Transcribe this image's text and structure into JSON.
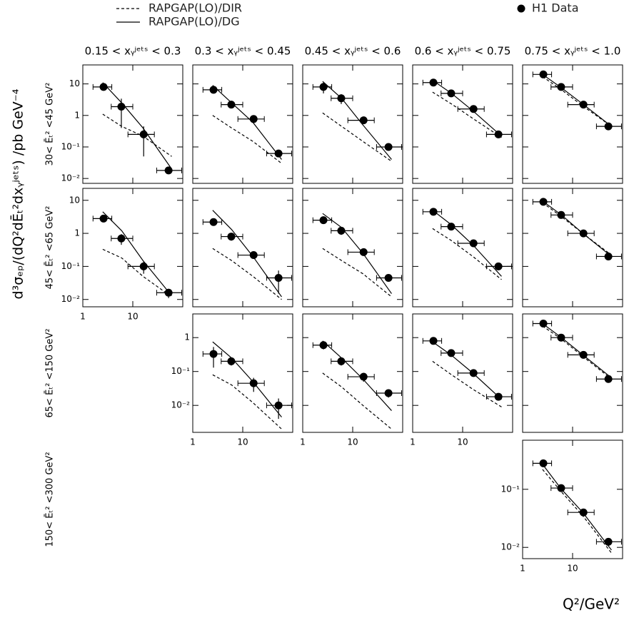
{
  "chart_data": {
    "type": "scatter",
    "ylabel": "d³σₑₚ/(dQ²dĒₜ²dxᵧʲᵉᵗˢ)   /pb GeV⁻⁴",
    "xlabel": "Q²/GeV²",
    "log_x": true,
    "log_y": true,
    "series": [
      {
        "name": "RAPGAP(LO)/DIR",
        "color": "#000000",
        "dash": true
      },
      {
        "name": "RAPGAP(LO)/DG",
        "color": "#000000",
        "dash": false
      },
      {
        "name": "H1 Data",
        "color": "#000000"
      }
    ],
    "column_titles": [
      "0.15 < xᵧʲᵉᵗˢ < 0.3",
      "0.3 < xᵧʲᵉᵗˢ < 0.45",
      "0.45 < xᵧʲᵉᵗˢ < 0.6",
      "0.6 < xᵧʲᵉᵗˢ < 0.75",
      "0.75 < xᵧʲᵉᵗˢ < 1.0"
    ],
    "xlim": [
      1,
      100
    ],
    "xticks": [
      1,
      10
    ],
    "x": [
      2.6,
      5.9,
      16.5,
      52
    ],
    "x_err_low": [
      1.6,
      3.7,
      8,
      30
    ],
    "x_err_high": [
      3.8,
      10,
      27,
      95
    ],
    "curve_x": [
      2.5,
      6,
      16,
      60
    ],
    "rows": [
      {
        "label": "30< Ēₜ² <45 GeV²",
        "ylim": [
          0.007,
          40
        ],
        "yticks": [
          {
            "value": 0.01,
            "label": "10⁻²"
          },
          {
            "value": 0.1,
            "label": "10⁻¹"
          },
          1,
          10
        ],
        "panels": [
          {
            "values": [
              8,
              1.9,
              0.25,
              0.018
            ],
            "yerr": [
              1.5,
              1.5,
              0.2,
              0.003
            ],
            "dg": [
              11,
              2.5,
              0.4,
              0.02
            ],
            "dir": [
              1.1,
              0.45,
              0.22,
              0.05
            ]
          },
          {
            "values": [
              6.5,
              2.2,
              0.77,
              0.062
            ],
            "yerr": [
              1,
              0.4,
              0.12,
              0.01
            ],
            "dg": [
              9,
              2.5,
              0.6,
              0.04
            ],
            "dir": [
              1.0,
              0.4,
              0.15,
              0.03
            ]
          },
          {
            "values": [
              8,
              3.5,
              0.7,
              0.1
            ],
            "yerr": [
              3,
              1.2,
              0.1,
              0.01
            ],
            "dg": [
              12,
              3.5,
              0.5,
              0.04
            ],
            "dir": [
              1.2,
              0.45,
              0.15,
              0.035
            ]
          },
          {
            "values": [
              11,
              5,
              1.6,
              0.25
            ],
            "yerr": [
              1.5,
              0.7,
              0.2,
              0.04
            ],
            "dg": [
              13,
              5,
              1.4,
              0.22
            ],
            "dir": [
              5.5,
              2.3,
              0.8,
              0.2
            ]
          },
          {
            "values": [
              20,
              8,
              2.2,
              0.45
            ],
            "yerr": [
              2,
              1,
              0.3,
              0.05
            ],
            "dg": [
              20,
              7.5,
              2.3,
              0.45
            ],
            "dir": [
              17,
              6.5,
              2.0,
              0.45
            ]
          }
        ]
      },
      {
        "label": "45< Ēₜ² <65 GeV²",
        "ylim": [
          0.006,
          23
        ],
        "yticks": [
          {
            "value": 0.01,
            "label": "10⁻²"
          },
          {
            "value": 0.1,
            "label": "10⁻¹"
          },
          1,
          10
        ],
        "panels": [
          {
            "values": [
              2.8,
              0.7,
              0.1,
              0.016
            ],
            "yerr": [
              0.6,
              0.25,
              0.04,
              0.005
            ],
            "dg": [
              4.5,
              1.2,
              0.15,
              0.013
            ],
            "dir": [
              0.33,
              0.18,
              0.05,
              0.012
            ]
          },
          {
            "values": [
              2.2,
              0.8,
              0.22,
              0.045
            ],
            "yerr": [
              0.5,
              0.2,
              0.05,
              0.03
            ],
            "dg": [
              5,
              1.3,
              0.2,
              0.012
            ],
            "dir": [
              0.35,
              0.15,
              0.05,
              0.01
            ]
          },
          {
            "values": [
              2.5,
              1.2,
              0.27,
              0.045
            ],
            "yerr": [
              0.5,
              0.3,
              0.06,
              0.01
            ],
            "dg": [
              4,
              1.5,
              0.25,
              0.015
            ],
            "dir": [
              0.35,
              0.15,
              0.06,
              0.012
            ]
          },
          {
            "values": [
              4.5,
              1.6,
              0.5,
              0.1
            ],
            "yerr": [
              0.7,
              0.3,
              0.08,
              0.02
            ],
            "dg": [
              5,
              1.8,
              0.45,
              0.05
            ],
            "dir": [
              1.4,
              0.6,
              0.2,
              0.04
            ]
          },
          {
            "values": [
              9,
              3.6,
              1.0,
              0.2
            ],
            "yerr": [
              1,
              0.5,
              0.15,
              0.03
            ],
            "dg": [
              9.5,
              3.6,
              1.0,
              0.2
            ],
            "dir": [
              8.5,
              3.2,
              1.0,
              0.22
            ]
          }
        ]
      },
      {
        "label": "65< Ēₜ² <150 GeV²",
        "ylim": [
          0.0016,
          5
        ],
        "yticks": [
          {
            "value": 0.01,
            "label": "10⁻²"
          },
          {
            "value": 0.1,
            "label": "10⁻¹"
          },
          1
        ],
        "panels": [
          null,
          {
            "values": [
              0.33,
              0.2,
              0.045,
              0.01
            ],
            "yerr": [
              0.2,
              0.05,
              0.02,
              0.006
            ],
            "dg": [
              0.75,
              0.25,
              0.05,
              0.0045
            ],
            "dir": [
              0.08,
              0.04,
              0.012,
              0.002
            ]
          },
          {
            "values": [
              0.6,
              0.2,
              0.07,
              0.023
            ],
            "yerr": [
              0.15,
              0.05,
              0.02,
              0.006
            ],
            "dg": [
              0.8,
              0.25,
              0.06,
              0.007
            ],
            "dir": [
              0.09,
              0.035,
              0.01,
              0.002
            ]
          },
          {
            "values": [
              0.8,
              0.35,
              0.09,
              0.018
            ],
            "yerr": [
              0.1,
              0.06,
              0.015,
              0.004
            ],
            "dg": [
              0.75,
              0.3,
              0.09,
              0.015
            ],
            "dir": [
              0.2,
              0.08,
              0.03,
              0.009
            ]
          },
          {
            "values": [
              2.6,
              1.0,
              0.31,
              0.06
            ],
            "yerr": [
              0.3,
              0.12,
              0.04,
              0.008
            ],
            "dg": [
              2.6,
              1.0,
              0.31,
              0.065
            ],
            "dir": [
              2.2,
              0.9,
              0.28,
              0.06
            ]
          }
        ]
      },
      {
        "label": "150< Ēₜ² <300 GeV²",
        "ylim": [
          0.0064,
          0.7
        ],
        "yticks": [
          {
            "value": 0.01,
            "label": "10⁻²"
          },
          {
            "value": 0.1,
            "label": "10⁻¹"
          }
        ],
        "panels": [
          null,
          null,
          null,
          null,
          {
            "values": [
              0.28,
              0.105,
              0.04,
              0.0125
            ],
            "yerr": [
              0.03,
              0.01,
              0.005,
              0.0015
            ],
            "dg": [
              0.27,
              0.1,
              0.04,
              0.009
            ],
            "dir": [
              0.22,
              0.09,
              0.035,
              0.008
            ]
          }
        ]
      }
    ]
  }
}
